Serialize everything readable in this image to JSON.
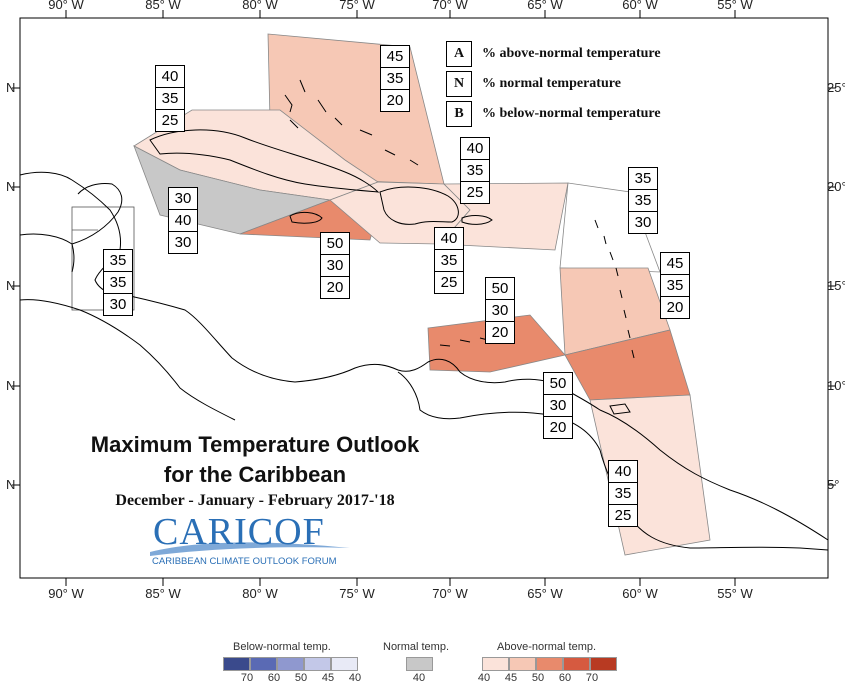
{
  "map": {
    "title_line1": "Maximum Temperature Outlook",
    "title_line2": "for the Caribbean",
    "season": "December - January - February 2017-'18",
    "longitude_ticks": [
      "90° W",
      "85° W",
      "80° W",
      "75° W",
      "70° W",
      "65° W",
      "60° W",
      "55° W"
    ],
    "left_lat_ticks": [
      "N",
      "N",
      "N",
      "N",
      "N"
    ],
    "right_lat_ticks": [
      "25°",
      "20°",
      "15°",
      "10°",
      "5°"
    ]
  },
  "key": {
    "rows": [
      {
        "letter": "A",
        "text": "% above-normal temperature"
      },
      {
        "letter": "N",
        "text": "% normal temperature"
      },
      {
        "letter": "B",
        "text": "% below-normal temperature"
      }
    ]
  },
  "regions": [
    {
      "name": "bahamas",
      "color": "#f6c8b5",
      "probs": {
        "above": "45",
        "normal": "35",
        "below": "20"
      }
    },
    {
      "name": "northern-cuba",
      "color": "#fbe3da",
      "probs": {
        "above": "40",
        "normal": "35",
        "below": "25"
      }
    },
    {
      "name": "western-cuba",
      "color": "#c8c8c8",
      "probs": {
        "above": "30",
        "normal": "40",
        "below": "30"
      }
    },
    {
      "name": "belize",
      "color": "#ffffff",
      "probs": {
        "above": "35",
        "normal": "35",
        "below": "30"
      }
    },
    {
      "name": "jamaica",
      "color": "#e88a6c",
      "probs": {
        "above": "50",
        "normal": "30",
        "below": "20"
      }
    },
    {
      "name": "hispaniola",
      "color": "#fbe3da",
      "probs": {
        "above": "40",
        "normal": "35",
        "below": "25"
      }
    },
    {
      "name": "puerto-rico",
      "color": "#fbe3da",
      "probs": {
        "above": "40",
        "normal": "35",
        "below": "25"
      }
    },
    {
      "name": "northern-leewards",
      "color": "#ffffff",
      "probs": {
        "above": "35",
        "normal": "35",
        "below": "30"
      }
    },
    {
      "name": "windwards",
      "color": "#f6c8b5",
      "probs": {
        "above": "45",
        "normal": "35",
        "below": "20"
      }
    },
    {
      "name": "abc-islands",
      "color": "#e88a6c",
      "probs": {
        "above": "50",
        "normal": "30",
        "below": "20"
      }
    },
    {
      "name": "trinidad",
      "color": "#e88a6c",
      "probs": {
        "above": "50",
        "normal": "30",
        "below": "20"
      }
    },
    {
      "name": "guianas",
      "color": "#fbe3da",
      "probs": {
        "above": "40",
        "normal": "35",
        "below": "25"
      }
    }
  ],
  "logo": {
    "name": "CARICOF",
    "subtitle": "CARIBBEAN CLIMATE OUTLOOK FORUM",
    "color": "#2a6fb6"
  },
  "legend": {
    "below": {
      "title": "Below-normal temp.",
      "labels": [
        "70",
        "60",
        "50",
        "45",
        "40"
      ],
      "colors": [
        "#3a4a8c",
        "#5a6ab4",
        "#8f98cf",
        "#c3c8e8",
        "#e8eaf6"
      ]
    },
    "normal": {
      "title": "Normal temp.",
      "labels": [
        "40"
      ],
      "colors": [
        "#c8c8c8"
      ]
    },
    "above": {
      "title": "Above-normal temp.",
      "labels": [
        "40",
        "45",
        "50",
        "60",
        "70"
      ],
      "colors": [
        "#fbe3da",
        "#f6c8b5",
        "#e88a6c",
        "#d65a40",
        "#b83a22"
      ]
    }
  }
}
